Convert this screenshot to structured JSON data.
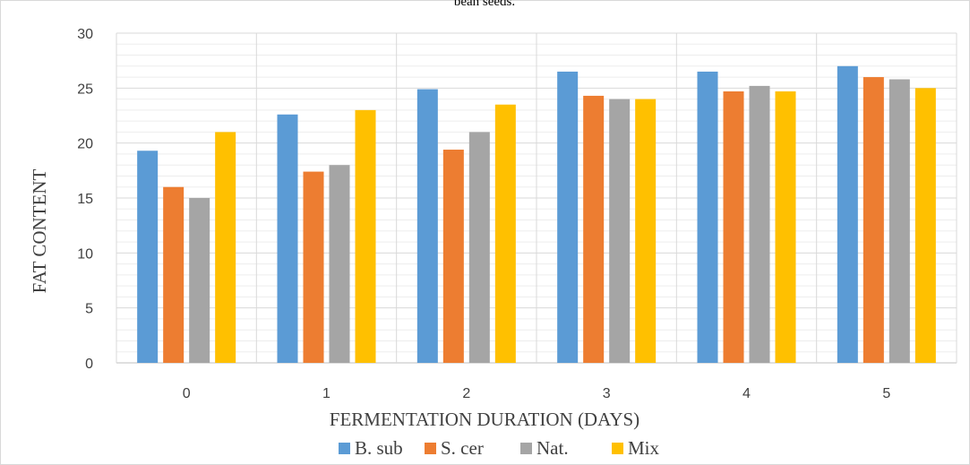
{
  "caption_fragment": "bean seeds.",
  "chart_data": {
    "type": "bar",
    "xlabel": "FERMENTATION DURATION (DAYS)",
    "ylabel": "FAT CONTENT",
    "ylim": [
      0,
      30
    ],
    "y_ticks": [
      0,
      5,
      10,
      15,
      20,
      25,
      30
    ],
    "y_minor_step": 1,
    "grid": true,
    "legend_position": "bottom",
    "categories": [
      "0",
      "1",
      "2",
      "3",
      "4",
      "5"
    ],
    "series": [
      {
        "name": "B. sub",
        "color": "#5b9bd5",
        "values": [
          19.3,
          22.6,
          24.9,
          26.5,
          26.5,
          27.0
        ]
      },
      {
        "name": "S. cer",
        "color": "#ed7d31",
        "values": [
          16.0,
          17.4,
          19.4,
          24.3,
          24.7,
          26.0
        ]
      },
      {
        "name": "Nat.",
        "color": "#a5a5a5",
        "values": [
          15.0,
          18.0,
          21.0,
          24.0,
          25.2,
          25.8
        ]
      },
      {
        "name": "Mix",
        "color": "#ffc000",
        "values": [
          21.0,
          23.0,
          23.5,
          24.0,
          24.7,
          25.0
        ]
      }
    ]
  }
}
